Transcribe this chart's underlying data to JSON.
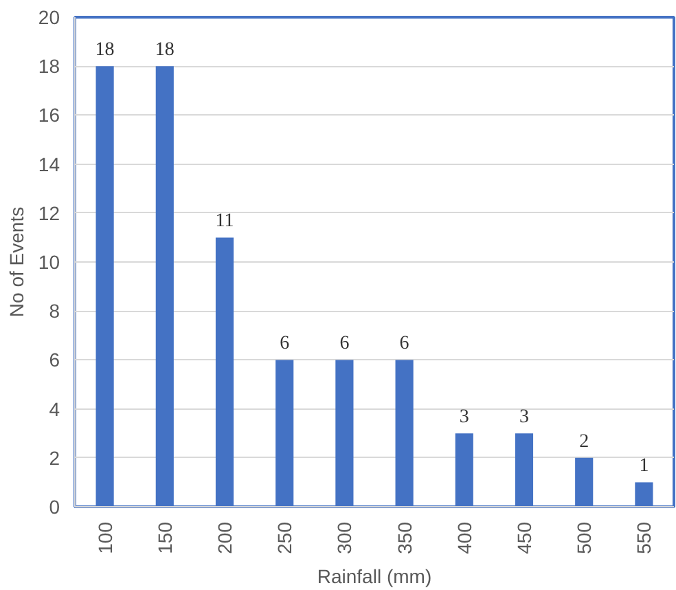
{
  "chart_data": {
    "type": "bar",
    "xlabel": "Rainfall (mm)",
    "ylabel": "No of Events",
    "categories": [
      "100",
      "150",
      "200",
      "250",
      "300",
      "350",
      "400",
      "450",
      "500",
      "550"
    ],
    "values": [
      18,
      18,
      11,
      6,
      6,
      6,
      3,
      3,
      2,
      1
    ],
    "color": "#4472c4",
    "ylim": [
      0,
      20
    ],
    "yticks": [
      0,
      2,
      4,
      6,
      8,
      10,
      12,
      14,
      16,
      18,
      20
    ],
    "grid": "y",
    "data_labels": true
  }
}
